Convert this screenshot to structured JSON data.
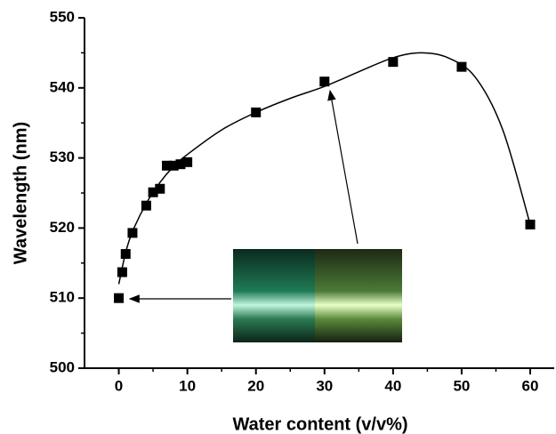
{
  "chart_data": {
    "type": "scatter",
    "xlabel": "Water content (v/v%)",
    "ylabel": "Wavelength (nm)",
    "xlim": [
      -5,
      63.5
    ],
    "ylim": [
      500,
      550
    ],
    "xticks": [
      0,
      10,
      20,
      30,
      40,
      50,
      60
    ],
    "yticks": [
      500,
      510,
      520,
      530,
      540,
      550
    ],
    "series": [
      {
        "color": "#000000",
        "marker": "square",
        "x": [
          0,
          0.5,
          1,
          2,
          4,
          5,
          6,
          7,
          8,
          9,
          10,
          20,
          30,
          40,
          50,
          60
        ],
        "values": [
          510,
          513.7,
          516.3,
          519.3,
          523.2,
          525.1,
          525.6,
          528.9,
          528.9,
          529.1,
          529.4,
          536.5,
          540.9,
          543.7,
          543.0,
          520.5
        ]
      },
      {
        "color": "#000000",
        "marker": "line",
        "x": [
          0,
          1,
          2,
          4,
          6,
          8,
          10,
          15,
          20,
          25,
          30,
          35,
          40,
          44,
          48,
          52,
          56,
          60
        ],
        "values": [
          512,
          516.5,
          519.5,
          523.5,
          526.5,
          528.8,
          530.5,
          534,
          536.5,
          538.5,
          540.2,
          542.3,
          544.3,
          545,
          544.3,
          541.5,
          534,
          520.5
        ]
      }
    ]
  }
}
